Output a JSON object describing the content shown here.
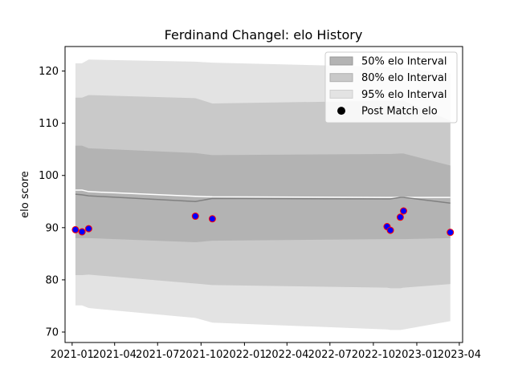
{
  "chart_data": {
    "type": "line",
    "title": "Ferdinand Changel: elo History",
    "xlabel": "",
    "ylabel": "elo score",
    "xlim": [
      "2020-12-17",
      "2023-04-08"
    ],
    "ylim": [
      68,
      124.7
    ],
    "x_ticks": [
      "2021-01",
      "2021-04",
      "2021-07",
      "2021-10",
      "2022-01",
      "2022-04",
      "2022-07",
      "2022-10",
      "2023-01",
      "2023-04"
    ],
    "y_ticks": [
      70,
      80,
      90,
      100,
      110,
      120
    ],
    "grid": false,
    "legend_position": "top-right",
    "colors": {
      "band50": "#b3b3b3",
      "band80": "#c9c9c9",
      "band95": "#e3e3e3",
      "mean_line": "#808080",
      "post_match_line": "#ffffff",
      "marker_fill": "#0000ff",
      "marker_edge": "#ff0000"
    },
    "x": [
      "2021-01-08",
      "2021-01-22",
      "2021-02-05",
      "2021-09-19",
      "2021-10-25",
      "2022-10-30",
      "2022-11-06",
      "2022-11-27",
      "2022-12-04",
      "2023-03-13"
    ],
    "bands": {
      "p95_upper": [
        121.5,
        121.5,
        122.2,
        121.8,
        121.6,
        120.8,
        120.8,
        120.6,
        120.6,
        119.5
      ],
      "p95_lower": [
        75.1,
        75.1,
        74.6,
        72.7,
        71.8,
        70.5,
        70.4,
        70.4,
        70.5,
        72.1
      ],
      "p80_upper": [
        114.9,
        114.9,
        115.4,
        114.8,
        113.8,
        114.3,
        114.3,
        114.3,
        114.3,
        110.5
      ],
      "p80_lower": [
        80.9,
        80.9,
        81.0,
        79.3,
        79.0,
        78.5,
        78.4,
        78.4,
        78.5,
        79.2
      ],
      "p50_upper": [
        105.7,
        105.7,
        105.2,
        104.3,
        103.9,
        104.1,
        104.1,
        104.2,
        104.2,
        101.9
      ],
      "p50_lower": [
        88.0,
        88.0,
        88.0,
        87.2,
        87.5,
        87.8,
        87.8,
        87.8,
        87.8,
        88.0
      ]
    },
    "mean_line": [
      96.4,
      96.3,
      96.1,
      95.0,
      95.6,
      95.5,
      95.5,
      95.8,
      95.8,
      94.7
    ],
    "post_match_line": [
      97.2,
      97.2,
      96.9,
      96.0,
      95.9,
      95.8,
      95.8,
      95.8,
      95.8,
      95.8
    ],
    "series": [
      {
        "name": "Post Match elo",
        "values": [
          89.6,
          89.2,
          89.8,
          92.2,
          91.7,
          90.2,
          89.5,
          92.0,
          93.2,
          89.1
        ]
      }
    ],
    "legend": [
      "50% elo Interval",
      "80% elo Interval",
      "95% elo Interval",
      "Post Match elo"
    ]
  }
}
